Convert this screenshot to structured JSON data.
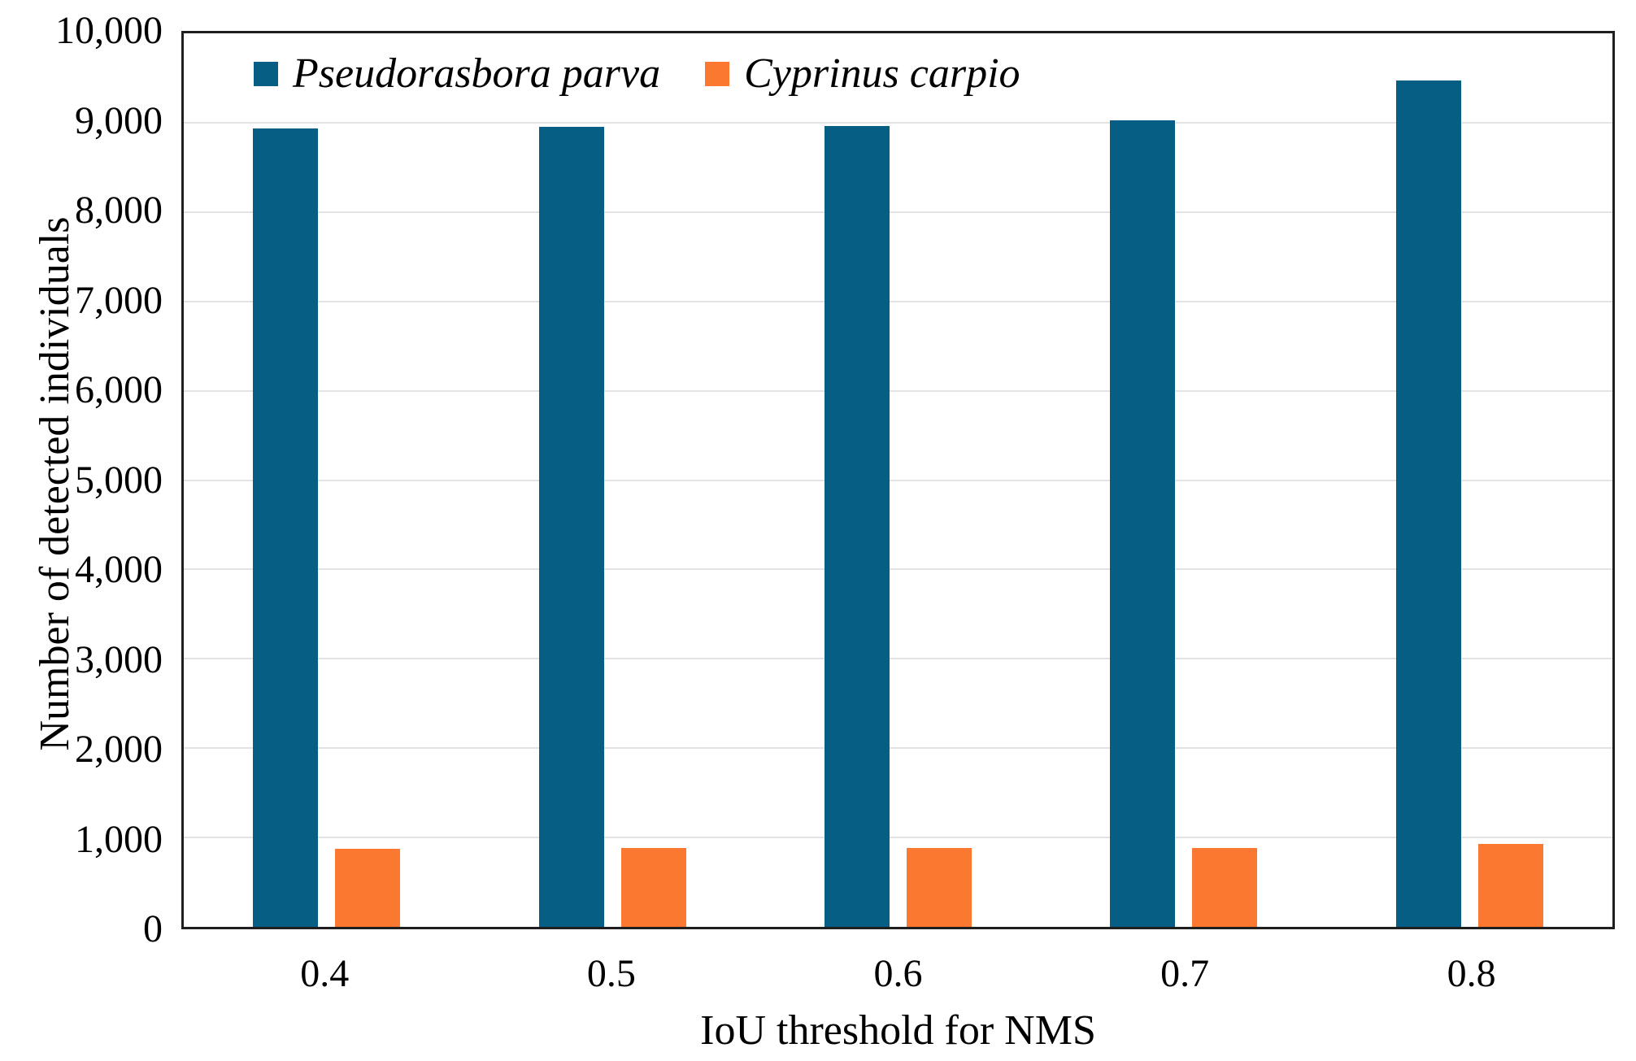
{
  "chart_data": {
    "type": "bar",
    "title": "",
    "categories": [
      "0.4",
      "0.5",
      "0.6",
      "0.7",
      "0.8"
    ],
    "series": [
      {
        "name": "Pseudorasbora parva",
        "color": "#075e84",
        "values": [
          8940,
          8950,
          8960,
          9030,
          9470
        ]
      },
      {
        "name": "Cyprinus carpio",
        "color": "#fa7830",
        "values": [
          875,
          880,
          880,
          885,
          930
        ]
      }
    ],
    "xlabel": "IoU threshold for NMS",
    "ylabel": "Number of detected individuals",
    "ylim": [
      0,
      10000
    ],
    "ytick_step": 1000,
    "ytick_labels": [
      "0",
      "1,000",
      "2,000",
      "3,000",
      "4,000",
      "5,000",
      "6,000",
      "7,000",
      "8,000",
      "9,000",
      "10,000"
    ],
    "grid": true,
    "legend_position": "inside-top-left"
  },
  "colors": {
    "axis_border": "#1f1f1f",
    "gridline": "#e3e3e3",
    "background": "#ffffff",
    "text": "#000000"
  }
}
